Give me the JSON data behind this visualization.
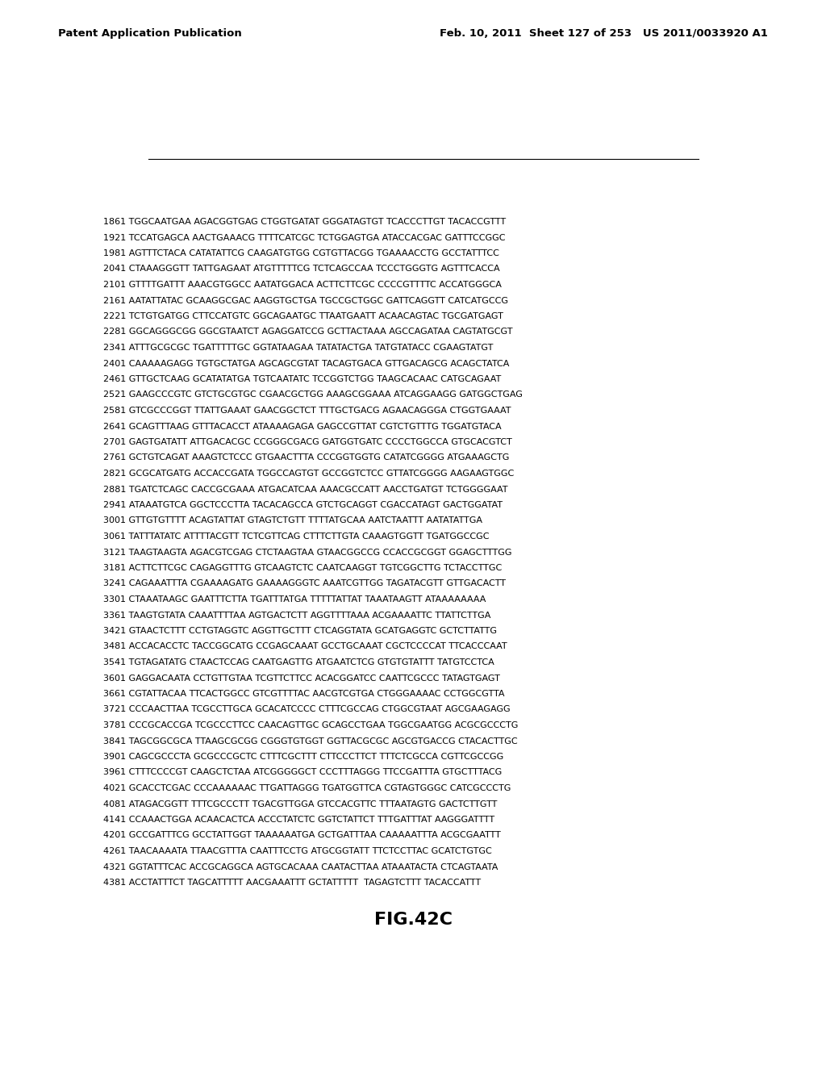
{
  "header_left": "Patent Application Publication",
  "header_right": "Feb. 10, 2011  Sheet 127 of 253   US 2011/0033920 A1",
  "figure_label": "FIG.42C",
  "background_color": "#ffffff",
  "header_fontsize": 9.5,
  "sequence_fontsize": 8.0,
  "sequences": [
    "1861 TGGCAATGAA AGACGGTGAG CTGGTGATAT GGGATAGTGT TCACCCTTGT TACACCGTTT",
    "1921 TCCATGAGCA AACTGAAACG TTTTCATCGC TCTGGAGTGA ATACCACGAC GATTTCCGGC",
    "1981 AGTTTCTACA CATATATTCG CAAGATGTGG CGTGTTACGG TGAAAACCTG GCCTATTTCC",
    "2041 CTAAAGGGTT TATTGAGAAT ATGTTTTTCG TCTCAGCCAA TCCCTGGGTG AGTTTCACCA",
    "2101 GTTTTGATTT AAACGTGGCC AATATGGACA ACTTCTTCGC CCCCGTTTTC ACCATGGGCA",
    "2161 AATATTATAC GCAAGGCGAC AAGGTGCTGA TGCCGCTGGC GATTCAGGTT CATCATGCCG",
    "2221 TCTGTGATGG CTTCCATGTC GGCAGAATGC TTAATGAATT ACAACAGTAC TGCGATGAGT",
    "2281 GGCAGGGCGG GGCGTAATCT AGAGGATCCG GCTTACTAAA AGCCAGATAA CAGTATGCGT",
    "2341 ATTTGCGCGC TGATTTTTGC GGTATAAGAA TATATACTGA TATGTATACC CGAAGTATGT",
    "2401 CAAAAAGAGG TGTGCTATGA AGCAGCGTAT TACAGTGACA GTTGACAGCG ACAGCTATCA",
    "2461 GTTGCTCAAG GCATATATGA TGTCAATATC TCCGGTCTGG TAAGCACAAC CATGCAGAAT",
    "2521 GAAGCCCGTC GTCTGCGTGC CGAACGCTGG AAAGCGGAAA ATCAGGAAGG GATGGCTGAG",
    "2581 GTCGCCCGGT TTATTGAAAT GAACGGCTCT TTTGCTGACG AGAACAGGGA CTGGTGAAAT",
    "2641 GCAGTTTAAG GTTTACACCT ATAAAAGAGA GAGCCGTTAT CGTCTGTTTG TGGATGTACA",
    "2701 GAGTGATATT ATTGACACGC CCGGGCGACG GATGGTGATC CCCCTGGCCA GTGCACGTCT",
    "2761 GCTGTCAGAT AAAGTCTCCC GTGAACTTTA CCCGGTGGTG CATATCGGGG ATGAAAGCTG",
    "2821 GCGCATGATG ACCACCGATA TGGCCAGTGT GCCGGTCTCC GTTATCGGGG AAGAAGTGGC",
    "2881 TGATCTCAGC CACCGCGAAA ATGACATCAA AAACGCCATT AACCTGATGT TCTGGGGAAT",
    "2941 ATAAATGTCA GGCTCCCTTA TACACAGCCA GTCTGCAGGT CGACCATAGT GACTGGATAT",
    "3001 GTTGTGTTTT ACAGTATTAT GTAGTCTGTT TTTTATGCAA AATCTAATTT AATATATTGA",
    "3061 TATTTATATC ATTTTACGTT TCTCGTTCAG CTTTCTTGTA CAAAGTGGTT TGATGGCCGC",
    "3121 TAAGTAAGTA AGACGTCGAG CTCTAAGTAA GTAACGGCCG CCACCGCGGT GGAGCTTTGG",
    "3181 ACTTCTTCGC CAGAGGTTTG GTCAAGTCTC CAATCAAGGT TGTCGGCTTG TCTACCTTGC",
    "3241 CAGAAATTTA CGAAAAGATG GAAAAGGGTC AAATCGTTGG TAGATACGTT GTTGACACTT",
    "3301 CTAAATAAGC GAATTTCTTA TGATTTATGA TTTTTATTAT TAAATAAGTT ATAAAAAAAA",
    "3361 TAAGTGTATA CAAATTTTAA AGTGACTCTT AGGTTTTAAA ACGAAAATTC TTATTCTTGA",
    "3421 GTAACTCTTT CCTGTAGGTC AGGTTGCTTT CTCAGGTATA GCATGAGGTC GCTCTTATTG",
    "3481 ACCACACCTC TACCGGCATG CCGAGCAAAT GCCTGCAAAT CGCTCCCCAT TTCACCCAAT",
    "3541 TGTAGATATG CTAACTCCAG CAATGAGTTG ATGAATCTCG GTGTGTATTT TATGTCCTCA",
    "3601 GAGGACAATA CCTGTTGTAA TCGTTCTTCC ACACGGATCC CAATTCGCCC TATAGTGAGT",
    "3661 CGTATTACAA TTCACTGGCC GTCGTTTTAC AACGTCGTGA CTGGGAAAAC CCTGGCGTTA",
    "3721 CCCAACTTAA TCGCCTTGCA GCACATCCCC CTTTCGCCAG CTGGCGTAAT AGCGAAGAGG",
    "3781 CCCGCACCGA TCGCCCTTCC CAACAGTTGC GCAGCCTGAA TGGCGAATGG ACGCGCCCTG",
    "3841 TAGCGGCGCA TTAAGCGCGG CGGGTGTGGT GGTTACGCGC AGCGTGACCG CTACACTTGC",
    "3901 CAGCGCCCTA GCGCCCGCTC CTTTCGCTTT CTTCCCTTCT TTTCTCGCCA CGTTCGCCGG",
    "3961 CTTTCCCCGT CAAGCTCTAA ATCGGGGGCT CCCTTTAGGG TTCCGATTTA GTGCTTTACG",
    "4021 GCACCTCGAC CCCAAAAAAC TTGATTAGGG TGATGGTTCA CGTAGTGGGC CATCGCCCTG",
    "4081 ATAGACGGTT TTTCGCCCTT TGACGTTGGA GTCCACGTTC TTTAATAGTG GACTCTTGTT",
    "4141 CCAAACTGGA ACAACACTCA ACCCTATCTC GGTCTATTCT TTTGATTTAT AAGGGATTTT",
    "4201 GCCGATTTCG GCCTATTGGT TAAAAAATGA GCTGATTTAA CAAAAATTTA ACGCGAATTT",
    "4261 TAACAAAATA TTAACGTTTA CAATTTCCTG ATGCGGTATT TTCTCCTTAC GCATCTGTGC",
    "4321 GGTATTTCAC ACCGCAGGCA AGTGCACAAA CAATACTTAA ATAAATACTA CTCAGTAATA",
    "4381 ACCTATTTCT TAGCATTTTT AACGAAATTT GCTATTTTT  TAGAGTCTTT TACACCATTT"
  ]
}
